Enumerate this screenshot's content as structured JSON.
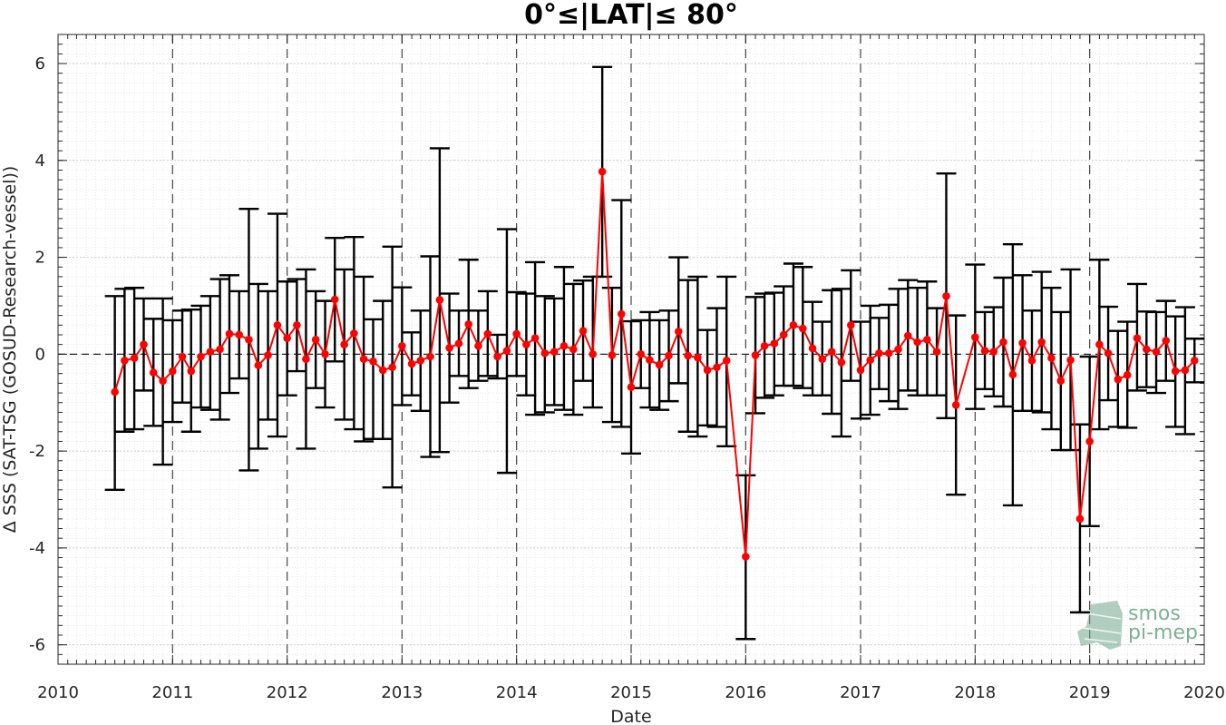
{
  "chart_data": {
    "type": "line",
    "title": "0°≤|LAT|≤ 80°",
    "xlabel": "Date",
    "ylabel": "Δ SSS (SAT-TSG (GOSUD-Research-vessel))",
    "xlim": [
      "2010-01-01",
      "2020-01-01"
    ],
    "ylim": [
      -6.4,
      6.6
    ],
    "x_ticks": [
      "2010",
      "2011",
      "2012",
      "2013",
      "2014",
      "2015",
      "2016",
      "2017",
      "2018",
      "2019",
      "2020"
    ],
    "y_ticks": [
      -6,
      -4,
      -2,
      0,
      2,
      4,
      6
    ],
    "y_tick_labels": [
      "-6",
      "-4",
      "-2",
      "0",
      "2",
      "4",
      "6"
    ],
    "grid": true,
    "reference_line_y": 0,
    "year_separator_lines": true,
    "series": [
      {
        "color": "#ff0000",
        "errorbar_color": "#000000",
        "points": [
          {
            "x": "2010-07-01",
            "y": -0.78,
            "lo": -2.8,
            "hi": 1.2
          },
          {
            "x": "2010-08-01",
            "y": -0.13,
            "lo": -1.6,
            "hi": 1.35
          },
          {
            "x": "2010-09-01",
            "y": -0.08,
            "lo": -1.55,
            "hi": 1.37
          },
          {
            "x": "2010-10-01",
            "y": 0.2,
            "lo": -0.75,
            "hi": 1.15
          },
          {
            "x": "2010-11-01",
            "y": -0.38,
            "lo": -1.48,
            "hi": 0.73
          },
          {
            "x": "2010-12-01",
            "y": -0.55,
            "lo": -2.28,
            "hi": 1.15
          },
          {
            "x": "2011-01-01",
            "y": -0.35,
            "lo": -1.4,
            "hi": 0.7
          },
          {
            "x": "2011-02-01",
            "y": -0.05,
            "lo": -1.0,
            "hi": 0.9
          },
          {
            "x": "2011-03-01",
            "y": -0.35,
            "lo": -1.6,
            "hi": 0.92
          },
          {
            "x": "2011-04-01",
            "y": -0.05,
            "lo": -1.1,
            "hi": 1.0
          },
          {
            "x": "2011-05-01",
            "y": 0.05,
            "lo": -1.15,
            "hi": 1.2
          },
          {
            "x": "2011-06-01",
            "y": 0.1,
            "lo": -1.35,
            "hi": 1.55
          },
          {
            "x": "2011-07-01",
            "y": 0.42,
            "lo": -0.8,
            "hi": 1.63
          },
          {
            "x": "2011-08-01",
            "y": 0.4,
            "lo": -0.5,
            "hi": 1.3
          },
          {
            "x": "2011-09-01",
            "y": 0.3,
            "lo": -2.4,
            "hi": 3.0
          },
          {
            "x": "2011-10-01",
            "y": -0.23,
            "lo": -1.95,
            "hi": 1.45
          },
          {
            "x": "2011-11-01",
            "y": -0.02,
            "lo": -1.35,
            "hi": 1.3
          },
          {
            "x": "2011-12-01",
            "y": 0.6,
            "lo": -1.7,
            "hi": 2.9
          },
          {
            "x": "2012-01-01",
            "y": 0.33,
            "lo": -0.85,
            "hi": 1.5
          },
          {
            "x": "2012-02-01",
            "y": 0.6,
            "lo": -0.35,
            "hi": 1.55
          },
          {
            "x": "2012-03-01",
            "y": -0.1,
            "lo": -1.95,
            "hi": 1.75
          },
          {
            "x": "2012-04-01",
            "y": 0.3,
            "lo": -0.7,
            "hi": 1.3
          },
          {
            "x": "2012-05-01",
            "y": 0.0,
            "lo": -1.1,
            "hi": 1.1
          },
          {
            "x": "2012-06-01",
            "y": 1.13,
            "lo": -0.15,
            "hi": 2.4
          },
          {
            "x": "2012-07-01",
            "y": 0.2,
            "lo": -1.35,
            "hi": 1.75
          },
          {
            "x": "2012-08-01",
            "y": 0.43,
            "lo": -1.55,
            "hi": 2.42
          },
          {
            "x": "2012-09-01",
            "y": -0.1,
            "lo": -1.8,
            "hi": 1.6
          },
          {
            "x": "2012-10-01",
            "y": -0.15,
            "lo": -1.75,
            "hi": 0.72
          },
          {
            "x": "2012-11-01",
            "y": -0.33,
            "lo": -1.75,
            "hi": 1.1
          },
          {
            "x": "2012-12-01",
            "y": -0.27,
            "lo": -2.75,
            "hi": 2.22
          },
          {
            "x": "2013-01-01",
            "y": 0.17,
            "lo": -1.05,
            "hi": 1.38
          },
          {
            "x": "2013-02-01",
            "y": -0.2,
            "lo": -0.85,
            "hi": 0.45
          },
          {
            "x": "2013-03-01",
            "y": -0.13,
            "lo": -1.17,
            "hi": 0.9
          },
          {
            "x": "2013-04-01",
            "y": -0.05,
            "lo": -2.12,
            "hi": 2.02
          },
          {
            "x": "2013-05-01",
            "y": 1.12,
            "lo": -2.02,
            "hi": 4.25
          },
          {
            "x": "2013-06-01",
            "y": 0.13,
            "lo": -1.0,
            "hi": 1.25
          },
          {
            "x": "2013-07-01",
            "y": 0.22,
            "lo": -0.45,
            "hi": 0.9
          },
          {
            "x": "2013-08-01",
            "y": 0.62,
            "lo": -0.7,
            "hi": 1.95
          },
          {
            "x": "2013-09-01",
            "y": 0.17,
            "lo": -0.55,
            "hi": 0.9
          },
          {
            "x": "2013-10-01",
            "y": 0.42,
            "lo": -0.45,
            "hi": 1.3
          },
          {
            "x": "2013-11-01",
            "y": -0.05,
            "lo": -0.5,
            "hi": 0.4
          },
          {
            "x": "2013-12-01",
            "y": 0.07,
            "lo": -2.45,
            "hi": 2.58
          },
          {
            "x": "2014-01-01",
            "y": 0.42,
            "lo": -0.45,
            "hi": 1.28
          },
          {
            "x": "2014-02-01",
            "y": 0.2,
            "lo": -0.85,
            "hi": 1.25
          },
          {
            "x": "2014-03-01",
            "y": 0.33,
            "lo": -1.25,
            "hi": 1.9
          },
          {
            "x": "2014-04-01",
            "y": 0.02,
            "lo": -1.2,
            "hi": 1.2
          },
          {
            "x": "2014-05-01",
            "y": 0.05,
            "lo": -1.05,
            "hi": 1.15
          },
          {
            "x": "2014-06-01",
            "y": 0.17,
            "lo": -1.15,
            "hi": 1.8
          },
          {
            "x": "2014-07-01",
            "y": 0.1,
            "lo": -1.25,
            "hi": 1.45
          },
          {
            "x": "2014-08-01",
            "y": 0.48,
            "lo": -0.55,
            "hi": 1.52
          },
          {
            "x": "2014-09-01",
            "y": 0.0,
            "lo": -1.1,
            "hi": 1.6
          },
          {
            "x": "2014-10-01",
            "y": 3.77,
            "lo": 1.6,
            "hi": 5.93
          },
          {
            "x": "2014-11-01",
            "y": -0.02,
            "lo": -1.4,
            "hi": 1.37
          },
          {
            "x": "2014-12-01",
            "y": 0.83,
            "lo": -1.5,
            "hi": 3.18
          },
          {
            "x": "2015-01-01",
            "y": -0.68,
            "lo": -2.05,
            "hi": 0.68
          },
          {
            "x": "2015-02-01",
            "y": 0.0,
            "lo": -0.7,
            "hi": 0.7
          },
          {
            "x": "2015-03-01",
            "y": -0.12,
            "lo": -1.1,
            "hi": 0.87
          },
          {
            "x": "2015-04-01",
            "y": -0.22,
            "lo": -1.15,
            "hi": 0.7
          },
          {
            "x": "2015-05-01",
            "y": -0.03,
            "lo": -0.97,
            "hi": 0.9
          },
          {
            "x": "2015-06-01",
            "y": 0.47,
            "lo": -0.6,
            "hi": 2.0
          },
          {
            "x": "2015-07-01",
            "y": -0.03,
            "lo": -1.6,
            "hi": 1.53
          },
          {
            "x": "2015-08-01",
            "y": -0.07,
            "lo": -1.7,
            "hi": 1.6
          },
          {
            "x": "2015-09-01",
            "y": -0.33,
            "lo": -1.47,
            "hi": 0.5
          },
          {
            "x": "2015-10-01",
            "y": -0.27,
            "lo": -1.5,
            "hi": 0.95
          },
          {
            "x": "2015-11-01",
            "y": -0.13,
            "lo": -1.9,
            "hi": 1.6
          },
          {
            "x": "2016-01-01",
            "y": -4.18,
            "lo": -5.88,
            "hi": -2.5
          },
          {
            "x": "2016-02-01",
            "y": -0.02,
            "lo": -1.22,
            "hi": 1.18
          },
          {
            "x": "2016-03-01",
            "y": 0.17,
            "lo": -0.9,
            "hi": 1.25
          },
          {
            "x": "2016-04-01",
            "y": 0.22,
            "lo": -0.85,
            "hi": 1.27
          },
          {
            "x": "2016-05-01",
            "y": 0.4,
            "lo": -0.65,
            "hi": 1.4
          },
          {
            "x": "2016-06-01",
            "y": 0.6,
            "lo": -0.65,
            "hi": 1.87
          },
          {
            "x": "2016-07-01",
            "y": 0.53,
            "lo": -0.7,
            "hi": 1.8
          },
          {
            "x": "2016-08-01",
            "y": 0.12,
            "lo": -0.85,
            "hi": 1.08
          },
          {
            "x": "2016-09-01",
            "y": -0.1,
            "lo": -0.85,
            "hi": 0.67
          },
          {
            "x": "2016-10-01",
            "y": 0.05,
            "lo": -1.23,
            "hi": 1.32
          },
          {
            "x": "2016-11-01",
            "y": -0.17,
            "lo": -1.7,
            "hi": 1.35
          },
          {
            "x": "2016-12-01",
            "y": 0.6,
            "lo": -0.55,
            "hi": 1.73
          },
          {
            "x": "2017-01-01",
            "y": -0.33,
            "lo": -1.33,
            "hi": 0.67
          },
          {
            "x": "2017-02-01",
            "y": -0.12,
            "lo": -1.25,
            "hi": 1.0
          },
          {
            "x": "2017-03-01",
            "y": 0.02,
            "lo": -0.72,
            "hi": 0.75
          },
          {
            "x": "2017-04-01",
            "y": 0.02,
            "lo": -0.97,
            "hi": 1.02
          },
          {
            "x": "2017-05-01",
            "y": 0.1,
            "lo": -1.13,
            "hi": 1.35
          },
          {
            "x": "2017-06-01",
            "y": 0.38,
            "lo": -0.75,
            "hi": 1.53
          },
          {
            "x": "2017-07-01",
            "y": 0.25,
            "lo": -0.85,
            "hi": 1.37
          },
          {
            "x": "2017-08-01",
            "y": 0.3,
            "lo": -0.85,
            "hi": 1.5
          },
          {
            "x": "2017-09-01",
            "y": 0.05,
            "lo": -0.85,
            "hi": 0.95
          },
          {
            "x": "2017-10-01",
            "y": 1.2,
            "lo": -1.32,
            "hi": 3.73
          },
          {
            "x": "2017-11-01",
            "y": -1.05,
            "lo": -2.9,
            "hi": 0.8
          },
          {
            "x": "2018-01-01",
            "y": 0.35,
            "lo": -1.13,
            "hi": 1.85
          },
          {
            "x": "2018-02-01",
            "y": 0.07,
            "lo": -0.72,
            "hi": 0.87
          },
          {
            "x": "2018-03-01",
            "y": 0.05,
            "lo": -0.87,
            "hi": 0.97
          },
          {
            "x": "2018-04-01",
            "y": 0.25,
            "lo": -1.08,
            "hi": 1.58
          },
          {
            "x": "2018-05-01",
            "y": -0.42,
            "lo": -3.12,
            "hi": 2.27
          },
          {
            "x": "2018-06-01",
            "y": 0.23,
            "lo": -1.17,
            "hi": 1.63
          },
          {
            "x": "2018-07-01",
            "y": -0.13,
            "lo": -1.17,
            "hi": 0.9
          },
          {
            "x": "2018-08-01",
            "y": 0.25,
            "lo": -1.2,
            "hi": 1.7
          },
          {
            "x": "2018-09-01",
            "y": -0.08,
            "lo": -1.55,
            "hi": 1.37
          },
          {
            "x": "2018-10-01",
            "y": -0.55,
            "lo": -1.98,
            "hi": 0.87
          },
          {
            "x": "2018-11-01",
            "y": -0.12,
            "lo": -1.98,
            "hi": 1.75
          },
          {
            "x": "2018-12-01",
            "y": -3.4,
            "lo": -5.33,
            "hi": -1.45
          },
          {
            "x": "2019-01-01",
            "y": -1.8,
            "lo": -3.55,
            "hi": -0.05
          },
          {
            "x": "2019-02-01",
            "y": 0.2,
            "lo": -1.55,
            "hi": 1.95
          },
          {
            "x": "2019-03-01",
            "y": 0.02,
            "lo": -0.95,
            "hi": 0.98
          },
          {
            "x": "2019-04-01",
            "y": -0.52,
            "lo": -1.5,
            "hi": 0.48
          },
          {
            "x": "2019-05-01",
            "y": -0.43,
            "lo": -1.52,
            "hi": 0.67
          },
          {
            "x": "2019-06-01",
            "y": 0.33,
            "lo": -0.75,
            "hi": 1.45
          },
          {
            "x": "2019-07-01",
            "y": 0.1,
            "lo": -0.68,
            "hi": 0.88
          },
          {
            "x": "2019-08-01",
            "y": 0.05,
            "lo": -0.8,
            "hi": 0.87
          },
          {
            "x": "2019-09-01",
            "y": 0.28,
            "lo": -0.55,
            "hi": 1.1
          },
          {
            "x": "2019-10-01",
            "y": -0.35,
            "lo": -1.5,
            "hi": 0.78
          },
          {
            "x": "2019-11-01",
            "y": -0.33,
            "lo": -1.65,
            "hi": 0.97
          },
          {
            "x": "2019-12-01",
            "y": -0.13,
            "lo": -0.58,
            "hi": 0.32
          }
        ]
      }
    ]
  },
  "watermark": {
    "line1": "smos",
    "line2": "pi-mep",
    "color": "#6fa88a"
  }
}
